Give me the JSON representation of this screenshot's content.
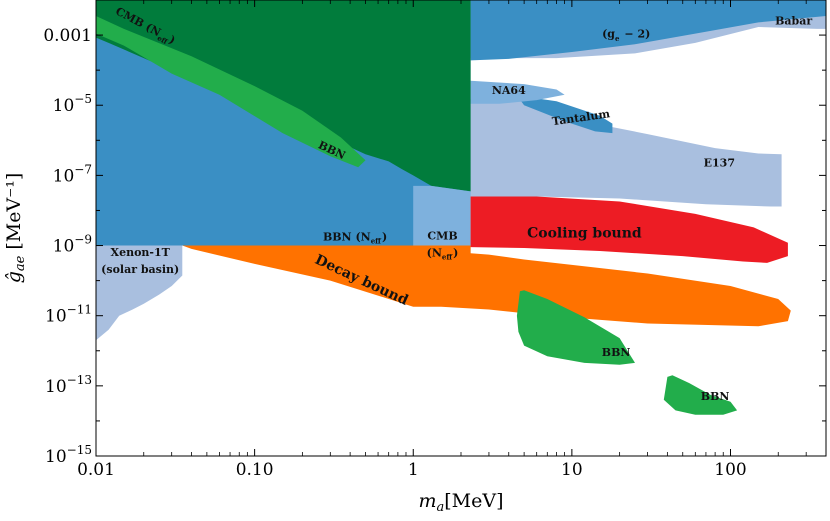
{
  "chart_data": {
    "type": "area",
    "xlabel": "m_a[MeV]",
    "ylabel": "ĝ_ae [MeV⁻¹]",
    "xscale": "log",
    "yscale": "log",
    "xlim": [
      0.01,
      400
    ],
    "ylim": [
      1e-15,
      0.01
    ],
    "x_ticks": [
      {
        "value": 0.01,
        "label": "0.01"
      },
      {
        "value": 0.1,
        "label": "0.10"
      },
      {
        "value": 1,
        "label": "1"
      },
      {
        "value": 10,
        "label": "10"
      },
      {
        "value": 100,
        "label": "100"
      }
    ],
    "y_ticks": [
      {
        "value": 0.001,
        "label": "0.001",
        "exp": ""
      },
      {
        "value": 1e-05,
        "label": "10",
        "exp": "−5"
      },
      {
        "value": 1e-07,
        "label": "10",
        "exp": "−7"
      },
      {
        "value": 1e-09,
        "label": "10",
        "exp": "−9"
      },
      {
        "value": 1e-11,
        "label": "10",
        "exp": "−11"
      },
      {
        "value": 1e-13,
        "label": "10",
        "exp": "−13"
      },
      {
        "value": 1e-15,
        "label": "10",
        "exp": "−15"
      }
    ],
    "regions": [
      {
        "id": "babar",
        "label": "Babar",
        "color": "#a9bfdf",
        "label_at": [
          250,
          0.002
        ],
        "size": 11,
        "angle": 0,
        "boundary": [
          [
            2.3,
            0.01
          ],
          [
            400,
            0.01
          ],
          [
            400,
            0.0015
          ],
          [
            350,
            0.0015
          ],
          [
            150,
            0.0017
          ],
          [
            60,
            0.0006
          ],
          [
            25,
            0.0003
          ],
          [
            8,
            0.00022
          ],
          [
            2.3,
            0.00022
          ]
        ]
      },
      {
        "id": "e137",
        "label": "E137",
        "color": "#a9bfdf",
        "label_at": [
          85,
          1.8e-07
        ],
        "size": 11,
        "angle": 0,
        "boundary": [
          [
            2.3,
            1.5e-05
          ],
          [
            6,
            1.5e-05
          ],
          [
            15,
            2.8e-06
          ],
          [
            30,
            1.5e-06
          ],
          [
            80,
            6e-07
          ],
          [
            150,
            4.2e-07
          ],
          [
            210,
            4e-07
          ],
          [
            210,
            1.3e-08
          ],
          [
            180,
            1.3e-08
          ],
          [
            70,
            1.5e-08
          ],
          [
            20,
            2.2e-08
          ],
          [
            6,
            2.5e-08
          ],
          [
            2.3,
            2.5e-08
          ]
        ]
      },
      {
        "id": "g-2",
        "label": "(g_e − 2)",
        "color": "#3a8fc4",
        "label_at": [
          22,
          0.00085
        ],
        "size": 11,
        "angle": 0,
        "boundary": [
          [
            2.3,
            0.01
          ],
          [
            400,
            0.01
          ],
          [
            400,
            0.0035
          ],
          [
            150,
            0.0023
          ],
          [
            60,
            0.0011
          ],
          [
            25,
            0.00055
          ],
          [
            10,
            0.00033
          ],
          [
            4,
            0.00021
          ],
          [
            2.3,
            0.00019
          ]
        ]
      },
      {
        "id": "tantalum",
        "label": "Tantalum",
        "color": "#3a8fc4",
        "label_at": [
          11.5,
          3.5e-06
        ],
        "size": 11,
        "angle": -8,
        "boundary": [
          [
            4.5,
            1.9e-05
          ],
          [
            8,
            1.3e-05
          ],
          [
            15,
            5e-06
          ],
          [
            18,
            3e-06
          ],
          [
            18,
            1.6e-06
          ],
          [
            14,
            1.8e-06
          ],
          [
            9,
            3.5e-06
          ],
          [
            5,
            1e-05
          ]
        ]
      },
      {
        "id": "na64",
        "label": "NA64",
        "color": "#7eb1dd",
        "label_at": [
          4,
          2.1e-05
        ],
        "size": 11,
        "angle": 0,
        "boundary": [
          [
            2.3,
            5e-05
          ],
          [
            5,
            4e-05
          ],
          [
            8,
            2.8e-05
          ],
          [
            9,
            2e-05
          ],
          [
            6,
            1.4e-05
          ],
          [
            3.5,
            1.1e-05
          ],
          [
            2.3,
            1.1e-05
          ]
        ]
      },
      {
        "id": "xenon",
        "label": "Xenon-1T",
        "label2": "(solar basin)",
        "color": "#a9bfdf",
        "label_at": [
          0.019,
          5e-10
        ],
        "size": 11,
        "angle": 0,
        "boundary": [
          [
            0.01,
            1e-09
          ],
          [
            0.035,
            1e-09
          ],
          [
            0.035,
            1.4e-10
          ],
          [
            0.03,
            7e-11
          ],
          [
            0.025,
            4e-11
          ],
          [
            0.02,
            2.2e-11
          ],
          [
            0.017,
            1.5e-11
          ],
          [
            0.014,
            1e-11
          ],
          [
            0.012,
            4e-12
          ],
          [
            0.01,
            2e-12
          ]
        ]
      },
      {
        "id": "bbn_neff",
        "label": "BBN (N_eff)",
        "color": "#3a8fc4",
        "label_at": [
          0.43,
          1.4e-09
        ],
        "size": 11,
        "angle": 0,
        "boundary": [
          [
            0.01,
            0.01
          ],
          [
            2.3,
            0.01
          ],
          [
            2.3,
            1e-09
          ],
          [
            0.01,
            1e-09
          ]
        ]
      },
      {
        "id": "cmb_neff_top",
        "label": "CMB (N_eff)",
        "color": "#017c3c",
        "label_at": [
          0.02,
          0.0015
        ],
        "size": 11,
        "angle": 28,
        "boundary": [
          [
            0.01,
            0.01
          ],
          [
            2.3,
            0.01
          ],
          [
            2.3,
            3.5e-08
          ],
          [
            1.3,
            5e-08
          ],
          [
            1,
            1e-07
          ],
          [
            0.85,
            1.5e-07
          ],
          [
            0.7,
            2.5e-07
          ],
          [
            0.5,
            4e-07
          ],
          [
            0.25,
            1.7e-06
          ],
          [
            0.08,
            1.3e-05
          ],
          [
            0.03,
            0.0001
          ],
          [
            0.012,
            0.0006
          ],
          [
            0.01,
            0.00085
          ]
        ]
      },
      {
        "id": "bbn_band",
        "label": "BBN",
        "color": "#22ad4b",
        "label_at": [
          0.3,
          4.2e-07
        ],
        "size": 11,
        "angle": 25,
        "boundary": [
          [
            0.01,
            0.0035
          ],
          [
            0.015,
            0.0015
          ],
          [
            0.04,
            0.00025
          ],
          [
            0.1,
            3.5e-05
          ],
          [
            0.2,
            7e-06
          ],
          [
            0.35,
            1.2e-06
          ],
          [
            0.5,
            2.7e-07
          ],
          [
            0.45,
            1.7e-07
          ],
          [
            0.3,
            3.5e-07
          ],
          [
            0.15,
            1.6e-06
          ],
          [
            0.06,
            2e-05
          ],
          [
            0.03,
            8e-05
          ],
          [
            0.015,
            0.0005
          ],
          [
            0.01,
            0.0011
          ]
        ]
      },
      {
        "id": "cmb_neff_box",
        "label": "CMB",
        "label2": "(N_eff)",
        "color": "#7eb1dd",
        "label_at": [
          1.53,
          1.5e-09
        ],
        "size": 11,
        "angle": 0,
        "boundary": [
          [
            1,
            5e-08
          ],
          [
            1.3,
            5e-08
          ],
          [
            2.3,
            3.5e-08
          ],
          [
            2.3,
            5e-10
          ],
          [
            2,
            5e-10
          ],
          [
            1.6,
            4e-10
          ],
          [
            1.2,
            3.3e-10
          ],
          [
            1,
            3.3e-10
          ]
        ]
      },
      {
        "id": "cooling",
        "label": "Cooling bound",
        "color": "#ed1c24",
        "label_at": [
          12,
          1.7e-09
        ],
        "size": 14,
        "angle": 0,
        "boundary": [
          [
            2.3,
            2.5e-08
          ],
          [
            6,
            2.5e-08
          ],
          [
            20,
            1.8e-08
          ],
          [
            60,
            8e-09
          ],
          [
            140,
            3.3e-09
          ],
          [
            230,
            1.2e-09
          ],
          [
            230,
            5e-10
          ],
          [
            170,
            3.2e-10
          ],
          [
            120,
            3.5e-10
          ],
          [
            50,
            5e-10
          ],
          [
            15,
            7e-10
          ],
          [
            5,
            8.5e-10
          ],
          [
            2.3,
            9e-10
          ]
        ]
      },
      {
        "id": "decay",
        "label": "Decay bound",
        "color": "#ff7200",
        "label_at": [
          0.46,
          8e-11
        ],
        "size": 14,
        "angle": 25,
        "boundary": [
          [
            0.035,
            1e-09
          ],
          [
            2.3,
            1e-09
          ],
          [
            2.3,
            6e-10
          ],
          [
            3,
            5.5e-10
          ],
          [
            5,
            4e-10
          ],
          [
            10,
            2.8e-10
          ],
          [
            30,
            1.6e-10
          ],
          [
            100,
            7e-11
          ],
          [
            200,
            3e-11
          ],
          [
            240,
            1.4e-11
          ],
          [
            230,
            7e-12
          ],
          [
            150,
            5e-12
          ],
          [
            30,
            6e-12
          ],
          [
            7,
            1e-11
          ],
          [
            3,
            1.5e-11
          ],
          [
            1.5,
            1.8e-11
          ],
          [
            1,
            1.8e-11
          ],
          [
            0.3,
            1e-10
          ],
          [
            0.1,
            3e-10
          ],
          [
            0.04,
            8e-10
          ]
        ]
      },
      {
        "id": "bbn_mid",
        "label": "BBN",
        "color": "#22ad4b",
        "label_at": [
          19,
          7e-13
        ],
        "size": 11,
        "angle": 0,
        "boundary": [
          [
            4.7,
            5e-11
          ],
          [
            5,
            5.3e-11
          ],
          [
            7,
            3e-11
          ],
          [
            12,
            9e-12
          ],
          [
            20,
            2.3e-12
          ],
          [
            25,
            4.5e-13
          ],
          [
            20,
            4e-13
          ],
          [
            12,
            4.5e-13
          ],
          [
            7,
            7e-13
          ],
          [
            5,
            1.4e-12
          ],
          [
            4.6,
            3.5e-12
          ],
          [
            4.5,
            1e-11
          ]
        ]
      },
      {
        "id": "bbn_low",
        "label": "BBN",
        "color": "#22ad4b",
        "label_at": [
          80,
          4e-14
        ],
        "size": 11,
        "angle": 0,
        "boundary": [
          [
            40,
            1.8e-13
          ],
          [
            43,
            2e-13
          ],
          [
            55,
            1.2e-13
          ],
          [
            75,
            5.5e-14
          ],
          [
            100,
            3.5e-14
          ],
          [
            110,
            2e-14
          ],
          [
            90,
            1.5e-14
          ],
          [
            60,
            1.5e-14
          ],
          [
            45,
            2e-14
          ],
          [
            38,
            4e-14
          ]
        ]
      }
    ]
  }
}
